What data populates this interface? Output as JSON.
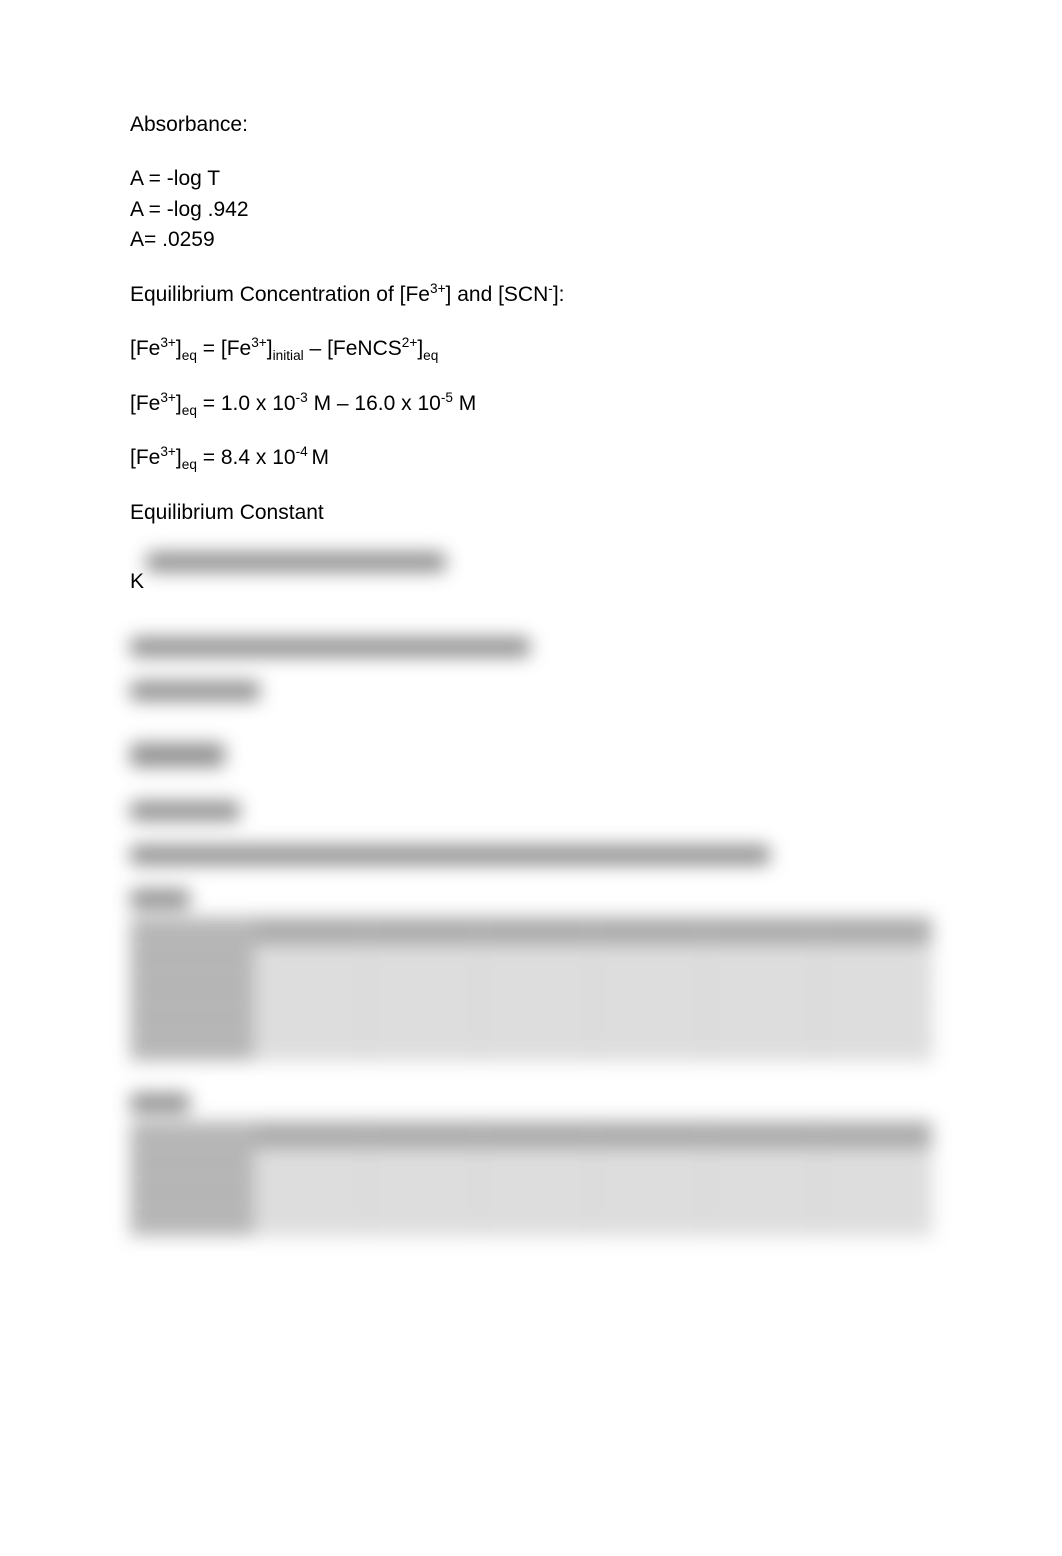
{
  "doc": {
    "section_absorbance_title": "Absorbance:",
    "abs_line1": "A = -log T",
    "abs_line2": "A = -log .942",
    "abs_line3": "A= .0259",
    "eq_conc_title_html": "Equilibrium Concentration of [Fe<sup>3+</sup>] and [SCN<sup>-</sup>]:",
    "eq_line1_html": "[Fe<sup>3+</sup>]<sub>eq</sub> = [Fe<sup>3+</sup>]<sub>initial</sub> – [FeNCS<sup>2+</sup>]<sub>eq</sub>",
    "eq_line2_html": "[Fe<sup>3+</sup>]<sub>eq</sub> = 1.0 x 10<sup>-3</sup> M – 16.0 x 10<sup>-5</sup> M",
    "eq_line3_html": "[Fe<sup>3+</sup>]<sub>eq</sub> = 8.4 x 10<sup>-4 </sup>M",
    "eq_constant_title": "Equilibrium Constant",
    "k_prefix": "K",
    "blurred": {
      "placeholders": {
        "k_line_rest": "eq = ([FeNCS2+]eq) / ([Fe3+]eq [SCN-]eq)",
        "k2": "Keq = (16.0 x 10-5 M) / (8.4 x 10-4 M)(2.0 x 10-4 M)",
        "k3": "Keq = 952.38",
        "results": "Results:",
        "see_graph": "*See Graph",
        "assumed": "*For this experiment, it is assumed that all of the SCN- ions have been converted to",
        "part1": "Part 1",
        "part2": "Part 2"
      }
    }
  },
  "style": {
    "page_bg": "#ffffff",
    "text_color": "#000000",
    "font_size_pt": 16,
    "blur_color": "#7d7d7d",
    "table_border": "#b8b8b8",
    "table_header_bg": "#9c9c9c",
    "table_cell_bg": "#d9d9d9"
  }
}
